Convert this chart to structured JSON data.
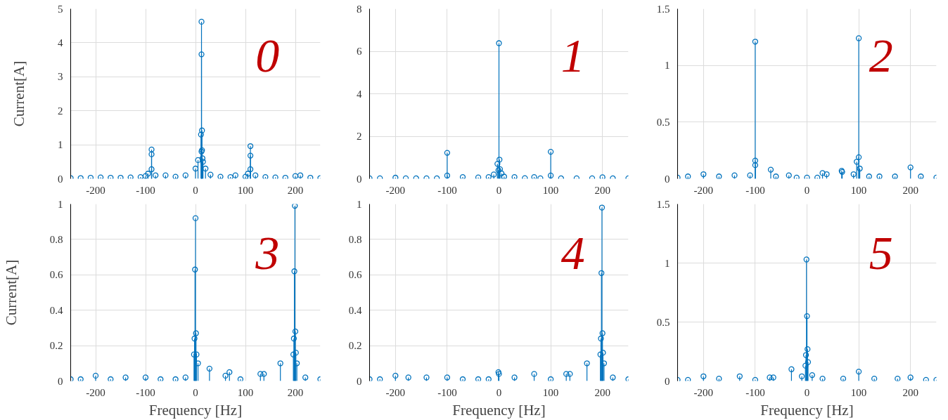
{
  "chart_data": [
    {
      "type": "lollipop",
      "ylabel": "Current[A]",
      "annotations": [
        "0"
      ],
      "xlim": [
        -250,
        250
      ],
      "xticks": [
        -200,
        -100,
        0,
        100,
        200
      ],
      "ylim": [
        0,
        5
      ],
      "yticks": [
        0,
        1,
        2,
        3,
        4,
        5
      ],
      "grid": true,
      "marker": "circle",
      "color": "#0072bd",
      "x": [
        -250,
        -230,
        -210,
        -190,
        -170,
        -150,
        -130,
        -110,
        -100,
        -95,
        -88,
        -88,
        -88,
        -80,
        -60,
        -40,
        -20,
        0,
        5,
        11,
        12,
        12,
        12,
        13,
        13,
        14,
        15,
        20,
        30,
        50,
        70,
        80,
        100,
        105,
        110,
        110,
        110,
        120,
        140,
        160,
        180,
        200,
        210,
        230,
        250
      ],
      "values": [
        0.02,
        0.02,
        0.03,
        0.04,
        0.03,
        0.03,
        0.04,
        0.05,
        0.08,
        0.15,
        0.86,
        0.72,
        0.28,
        0.1,
        0.1,
        0.06,
        0.1,
        0.3,
        0.55,
        1.3,
        4.62,
        3.66,
        0.8,
        1.42,
        0.84,
        0.6,
        0.5,
        0.3,
        0.12,
        0.06,
        0.05,
        0.1,
        0.06,
        0.15,
        0.96,
        0.68,
        0.28,
        0.1,
        0.05,
        0.04,
        0.03,
        0.08,
        0.1,
        0.03,
        0.02
      ]
    },
    {
      "type": "lollipop",
      "annotations": [
        "1"
      ],
      "xlim": [
        -250,
        250
      ],
      "xticks": [
        -200,
        -100,
        0,
        100,
        200
      ],
      "ylim": [
        0,
        8
      ],
      "yticks": [
        0,
        2,
        4,
        6,
        8
      ],
      "grid": true,
      "marker": "circle",
      "color": "#0072bd",
      "x": [
        -250,
        -230,
        -200,
        -180,
        -160,
        -140,
        -120,
        -100,
        -100,
        -70,
        -40,
        -20,
        -10,
        -3,
        -1,
        0,
        1,
        2,
        5,
        10,
        30,
        50,
        68,
        80,
        100,
        100,
        120,
        150,
        180,
        200,
        220,
        250
      ],
      "values": [
        0.02,
        0.02,
        0.05,
        0.02,
        0.02,
        0.02,
        0.02,
        1.22,
        0.15,
        0.08,
        0.06,
        0.08,
        0.2,
        0.7,
        0.4,
        6.38,
        0.9,
        0.45,
        0.25,
        0.1,
        0.08,
        0.03,
        0.08,
        0.02,
        1.27,
        0.15,
        0.02,
        0.02,
        0.02,
        0.07,
        0.02,
        0.02
      ]
    },
    {
      "type": "lollipop",
      "annotations": [
        "2"
      ],
      "xlim": [
        -250,
        250
      ],
      "xticks": [
        -200,
        -100,
        0,
        100,
        200
      ],
      "ylim": [
        0,
        1.5
      ],
      "yticks": [
        0,
        0.5,
        1,
        1.5
      ],
      "grid": true,
      "marker": "circle",
      "color": "#0072bd",
      "x": [
        -250,
        -230,
        -200,
        -170,
        -140,
        -110,
        -100,
        -100,
        -100,
        -70,
        -60,
        -35,
        -20,
        0,
        20,
        30,
        38,
        67,
        68,
        90,
        96,
        100,
        100,
        102,
        120,
        140,
        170,
        200,
        220,
        250
      ],
      "values": [
        0.01,
        0.02,
        0.04,
        0.02,
        0.03,
        0.03,
        1.21,
        0.16,
        0.12,
        0.08,
        0.02,
        0.03,
        0.01,
        0.01,
        0.01,
        0.05,
        0.04,
        0.07,
        0.06,
        0.04,
        0.15,
        1.24,
        0.19,
        0.09,
        0.02,
        0.02,
        0.02,
        0.1,
        0.02,
        0.01
      ]
    },
    {
      "type": "lollipop",
      "ylabel": "Current[A]",
      "xlabel": "Frequency [Hz]",
      "annotations": [
        "3"
      ],
      "xlim": [
        -250,
        250
      ],
      "xticks": [
        -200,
        -100,
        0,
        100,
        200
      ],
      "ylim": [
        0,
        1
      ],
      "yticks": [
        0,
        0.2,
        0.4,
        0.6,
        0.8,
        1
      ],
      "grid": true,
      "marker": "circle",
      "color": "#0072bd",
      "x": [
        -250,
        -230,
        -200,
        -170,
        -140,
        -100,
        -70,
        -40,
        -20,
        -3,
        -2,
        -1,
        0,
        1,
        2,
        5,
        28,
        60,
        68,
        90,
        130,
        137,
        170,
        196,
        197,
        198,
        199,
        200,
        201,
        203,
        220,
        250
      ],
      "values": [
        0.01,
        0.01,
        0.03,
        0.01,
        0.02,
        0.02,
        0.01,
        0.01,
        0.02,
        0.15,
        0.24,
        0.63,
        0.92,
        0.27,
        0.15,
        0.1,
        0.07,
        0.03,
        0.05,
        0.01,
        0.04,
        0.04,
        0.1,
        0.15,
        0.24,
        0.62,
        0.99,
        0.28,
        0.16,
        0.1,
        0.02,
        0.01
      ]
    },
    {
      "type": "lollipop",
      "xlabel": "Frequency [Hz]",
      "annotations": [
        "4"
      ],
      "xlim": [
        -250,
        250
      ],
      "xticks": [
        -200,
        -100,
        0,
        100,
        200
      ],
      "ylim": [
        0,
        1
      ],
      "yticks": [
        0,
        0.2,
        0.4,
        0.6,
        0.8,
        1
      ],
      "grid": true,
      "marker": "circle",
      "color": "#0072bd",
      "x": [
        -250,
        -230,
        -200,
        -175,
        -140,
        -100,
        -70,
        -40,
        -20,
        -1,
        0,
        30,
        68,
        100,
        130,
        137,
        170,
        196,
        197,
        198,
        199,
        200,
        201,
        203,
        220,
        250
      ],
      "values": [
        0.01,
        0.01,
        0.03,
        0.02,
        0.02,
        0.02,
        0.01,
        0.01,
        0.01,
        0.05,
        0.04,
        0.02,
        0.04,
        0.01,
        0.04,
        0.04,
        0.1,
        0.15,
        0.24,
        0.61,
        0.98,
        0.27,
        0.16,
        0.1,
        0.02,
        0.01
      ]
    },
    {
      "type": "lollipop",
      "xlabel": "Frequency [Hz]",
      "annotations": [
        "5"
      ],
      "xlim": [
        -250,
        250
      ],
      "xticks": [
        -200,
        -100,
        0,
        100,
        200
      ],
      "ylim": [
        0,
        1.5
      ],
      "yticks": [
        0,
        0.5,
        1,
        1.5
      ],
      "grid": true,
      "marker": "circle",
      "color": "#0072bd",
      "x": [
        -250,
        -230,
        -200,
        -170,
        -130,
        -100,
        -72,
        -65,
        -30,
        -10,
        -3,
        -2,
        -1,
        0,
        1,
        2,
        10,
        30,
        70,
        100,
        130,
        175,
        200,
        230,
        250
      ],
      "values": [
        0.01,
        0.01,
        0.04,
        0.02,
        0.04,
        0.01,
        0.03,
        0.03,
        0.1,
        0.04,
        0.13,
        0.22,
        1.03,
        0.55,
        0.27,
        0.16,
        0.05,
        0.02,
        0.02,
        0.08,
        0.02,
        0.02,
        0.03,
        0.01,
        0.01
      ]
    }
  ]
}
